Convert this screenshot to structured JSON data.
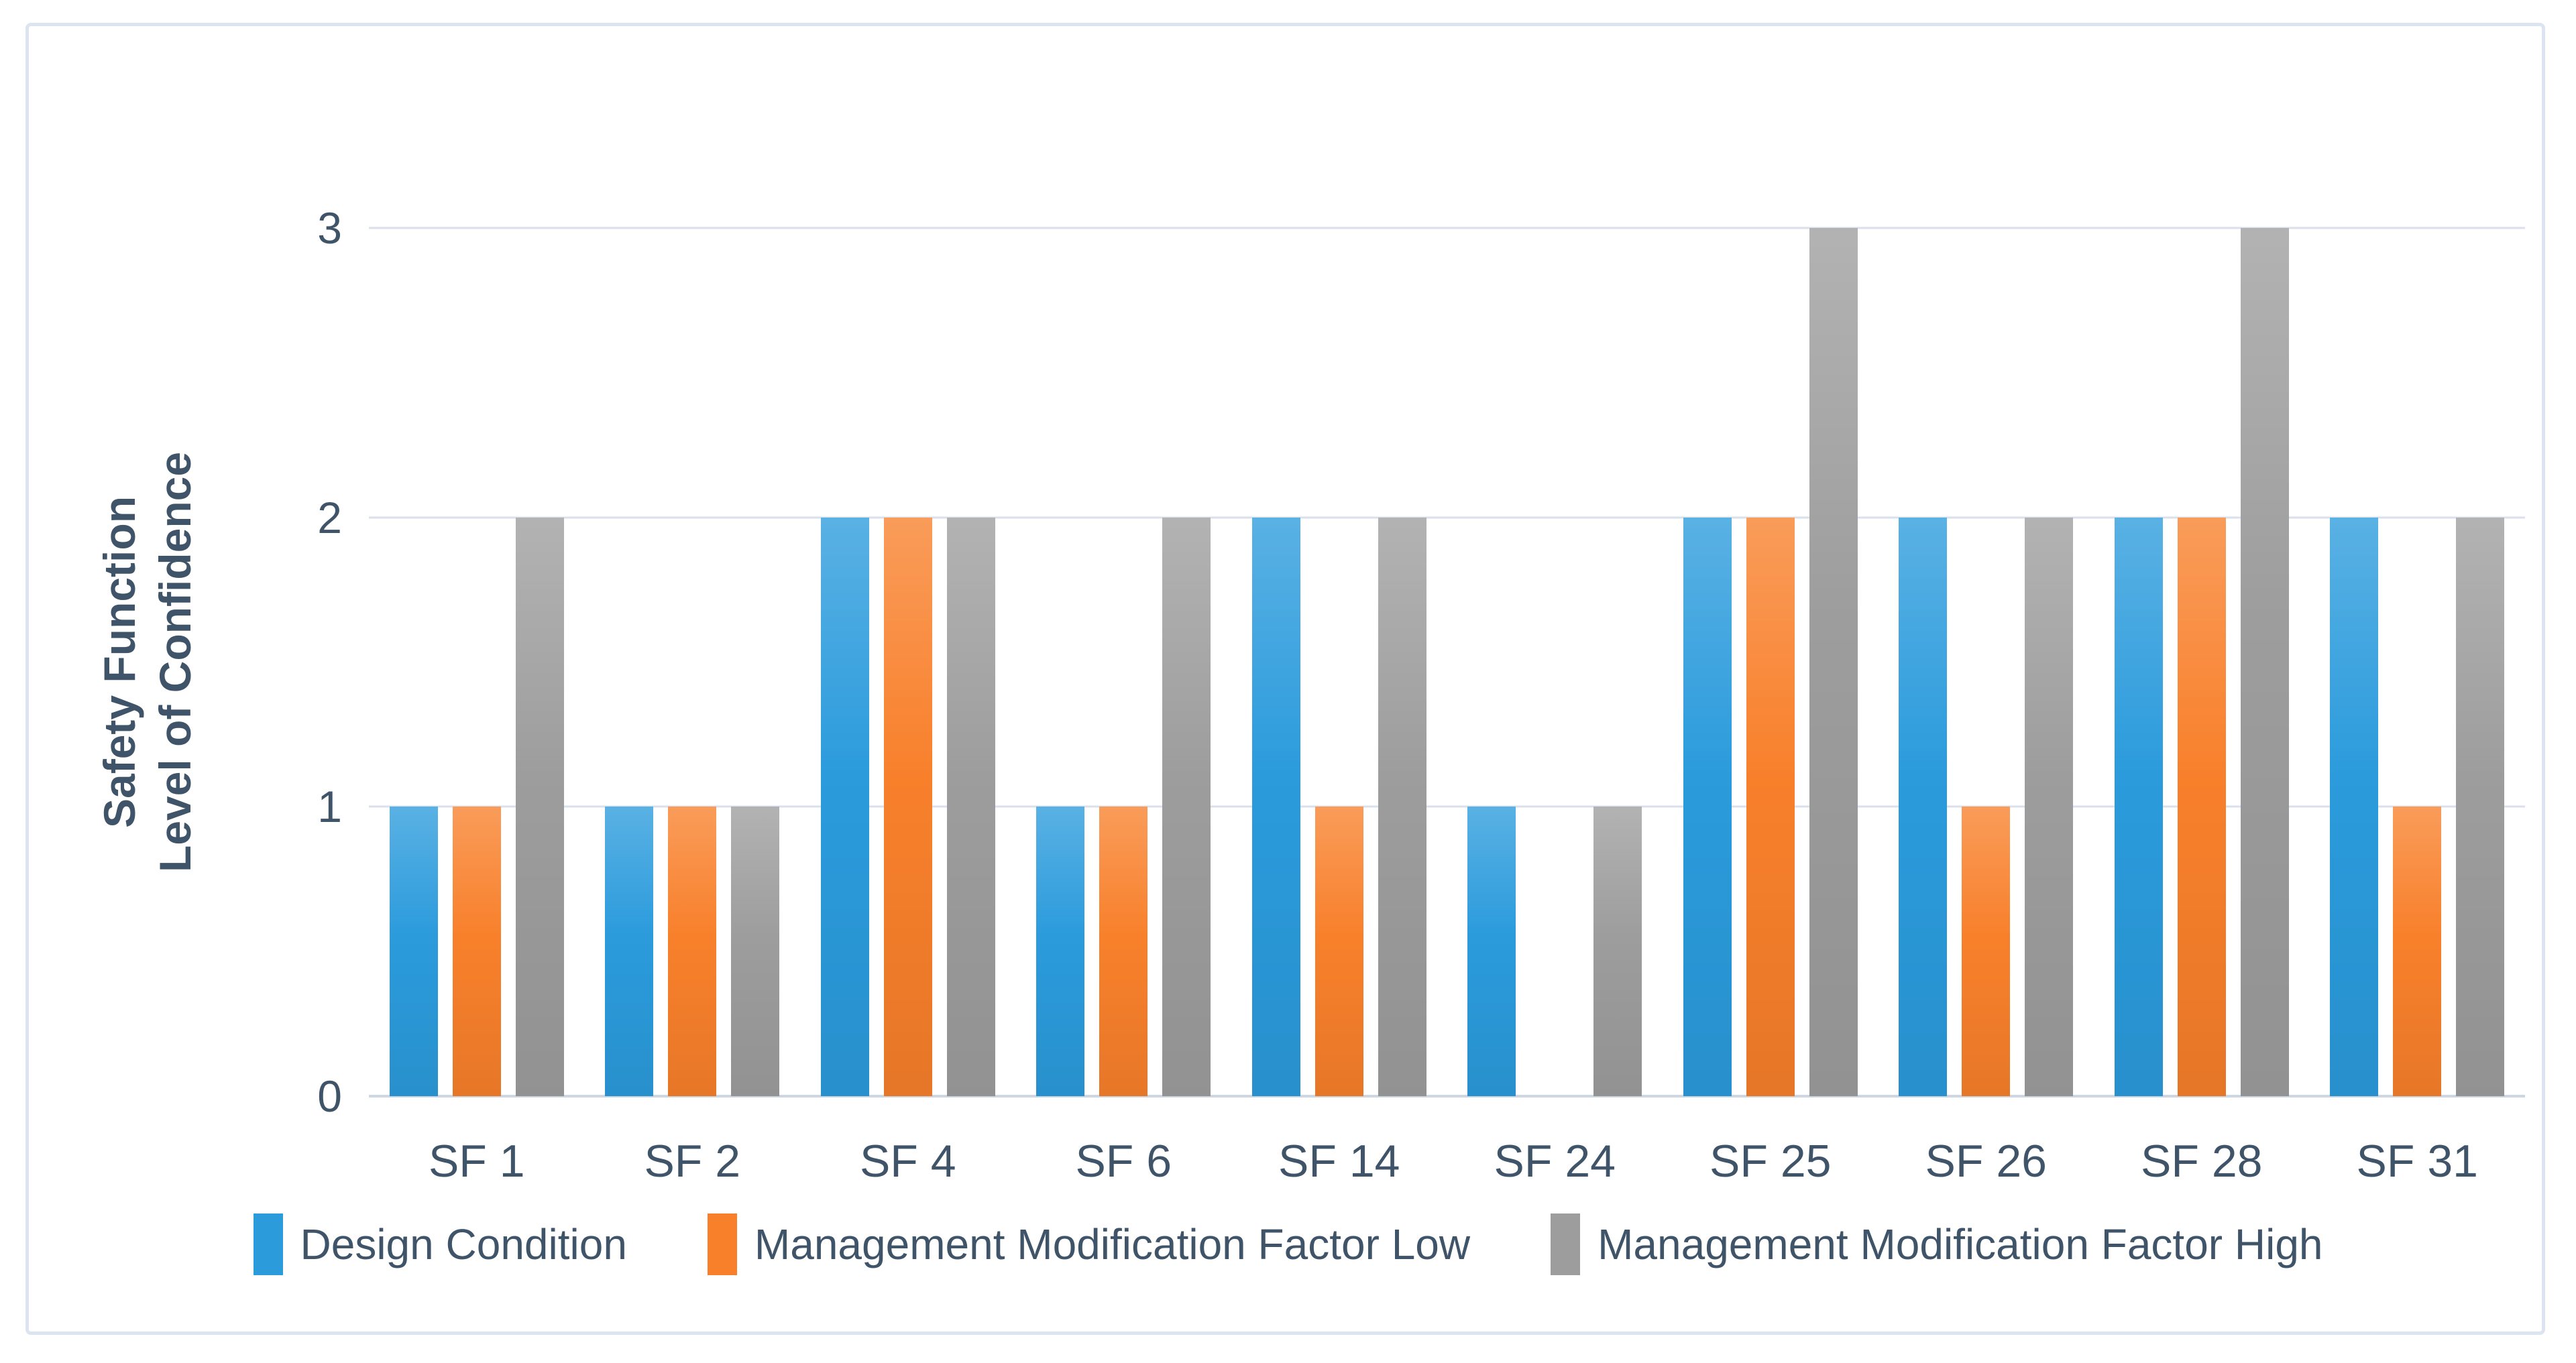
{
  "figure": {
    "background": "#ffffff",
    "border_color": "#dbe4f0",
    "text_color": "#3f5468",
    "gridline_color": "#d9e2ec"
  },
  "chart_data": {
    "type": "bar",
    "title": "",
    "categories": [
      "SF 1",
      "SF 2",
      "SF 4",
      "SF 6",
      "SF 14",
      "SF 24",
      "SF 25",
      "SF 26",
      "SF 28",
      "SF 31"
    ],
    "series": [
      {
        "name": "Design Condition",
        "color": "#2b9bdc",
        "values": [
          1,
          1,
          2,
          1,
          2,
          1,
          2,
          2,
          2,
          2
        ]
      },
      {
        "name": "Management Modification Factor Low",
        "color": "#f8802b",
        "values": [
          1,
          1,
          2,
          1,
          1,
          0,
          2,
          1,
          2,
          1
        ]
      },
      {
        "name": "Management Modification Factor High",
        "color": "#9d9d9d",
        "values": [
          2,
          1,
          2,
          2,
          2,
          1,
          3,
          2,
          3,
          2
        ]
      }
    ],
    "xlabel": "",
    "ylabel_line1": "Safety Function",
    "ylabel_line2": "Level of Confidence",
    "yticks": [
      0,
      1,
      2,
      3
    ],
    "ylim": [
      0,
      3
    ],
    "grid": true,
    "legend_position": "bottom"
  }
}
